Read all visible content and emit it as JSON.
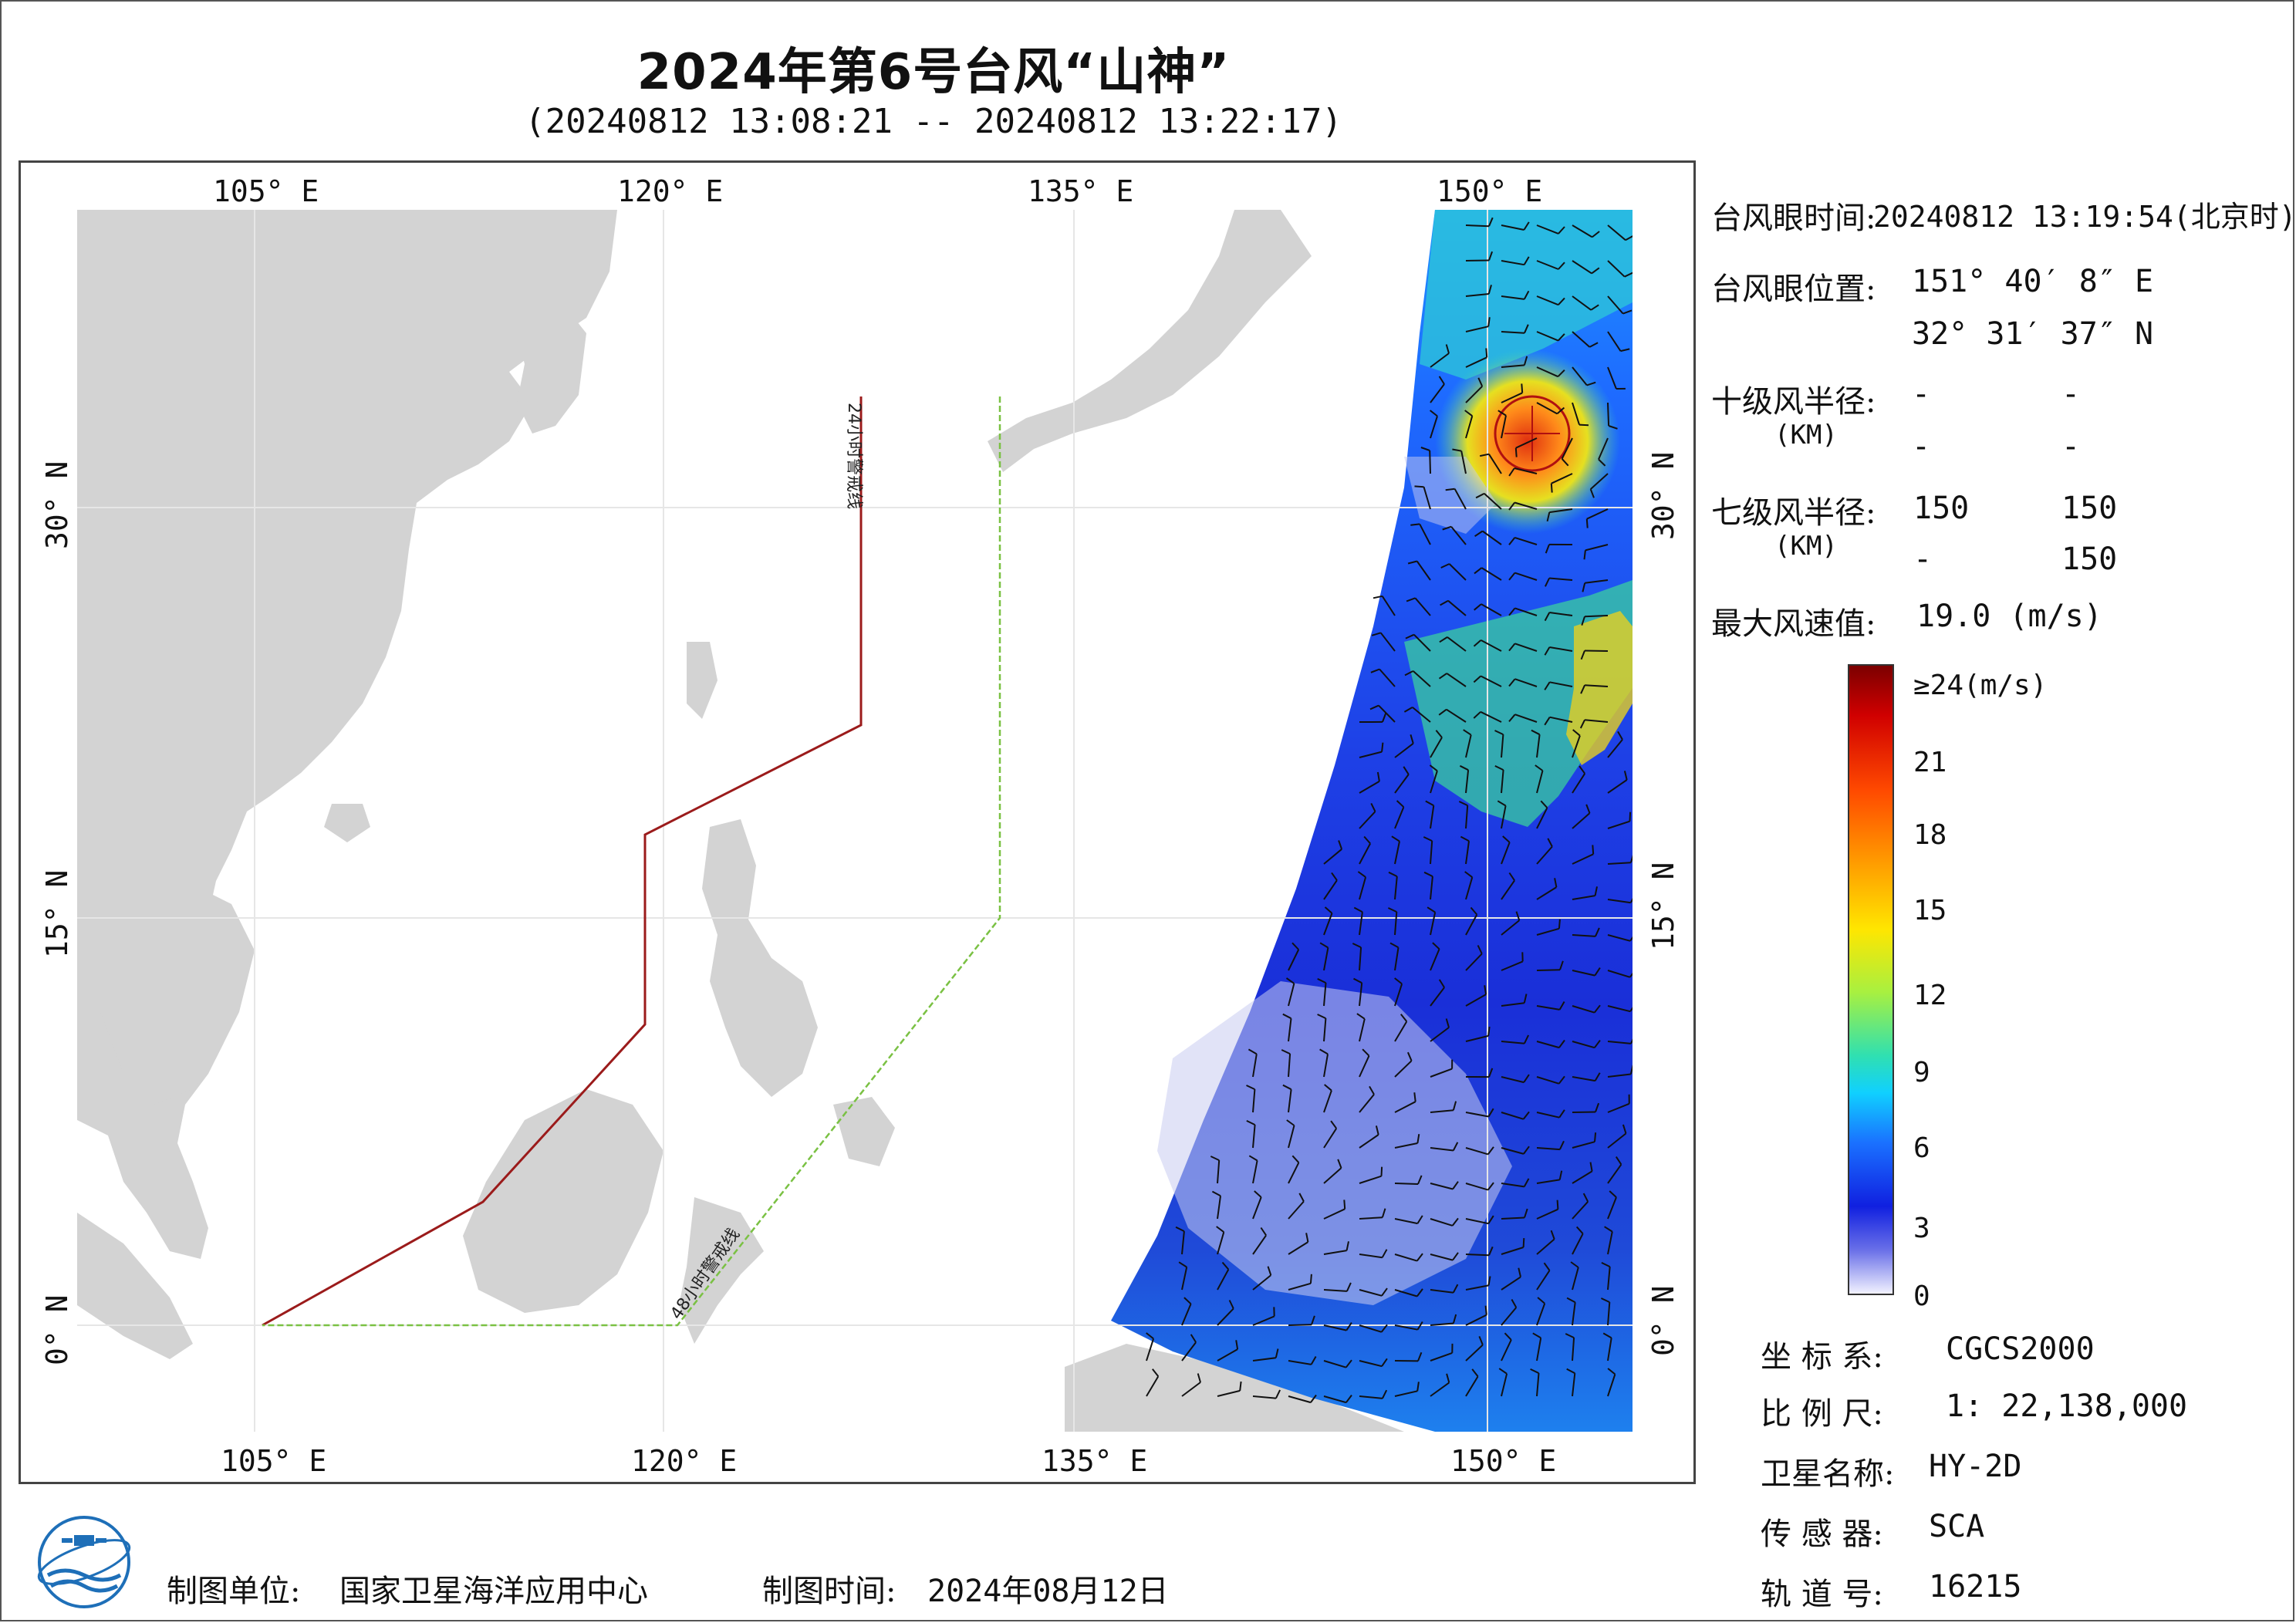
{
  "title": "2024年第6号台风“山神”",
  "subtitle": "(20240812 13:08:21 -- 20240812 13:22:17)",
  "map": {
    "lon_labels": [
      "105° E",
      "120° E",
      "135° E",
      "150° E"
    ],
    "lat_labels": [
      "30° N",
      "15° N",
      "0° N"
    ],
    "warning_24h_label": "24小时警戒线",
    "warning_48h_label": "48小时警戒线",
    "colors": {
      "land": "#d3d3d3",
      "sea": "#ffffff",
      "line_24h": "#9b1b1b",
      "line_48h": "#7ac143"
    }
  },
  "eye_info": {
    "time_label": "台风眼时间:",
    "time_value": "20240812 13:19:54(北京时)",
    "position_label": "台风眼位置:",
    "position_lon": "151° 40′ 8″ E",
    "position_lat": "32° 31′ 37″ N",
    "r10_label": "十级风半径:",
    "r10_unit": "(KM)",
    "r10_values": [
      "-",
      "-",
      "-",
      "-"
    ],
    "r7_label": "七级风半径:",
    "r7_unit": "(KM)",
    "r7_values": [
      "150",
      "150",
      "-",
      "150"
    ],
    "max_wind_label": "最大风速值:",
    "max_wind_value": "19.0  (m/s)"
  },
  "colorbar": {
    "labels": [
      "≥24(m/s)",
      "21",
      "18",
      "15",
      "12",
      "9",
      "6",
      "3",
      "0"
    ]
  },
  "meta": {
    "crs_label": "坐 标 系:",
    "crs_value": "CGCS2000",
    "scale_label": "比 例 尺:",
    "scale_value": "1: 22,138,000",
    "satellite_label": "卫星名称:",
    "satellite_value": "HY-2D",
    "sensor_label": "传 感 器:",
    "sensor_value": "SCA",
    "orbit_label": "轨 道 号:",
    "orbit_value": "16215"
  },
  "footer": {
    "producer_label": "制图单位:",
    "producer_value": "国家卫星海洋应用中心",
    "date_label": "制图时间:",
    "date_value": "2024年08月12日"
  }
}
